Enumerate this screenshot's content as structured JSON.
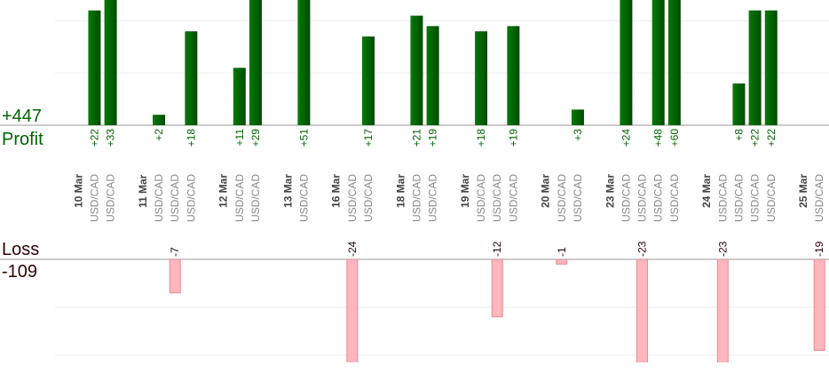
{
  "chart_data": {
    "type": "bar",
    "profit": {
      "label": "Profit",
      "total": 447,
      "total_label": "+447",
      "color": "#006400",
      "ylim": [
        0,
        24
      ],
      "yticks": [
        10,
        20
      ],
      "grid": true
    },
    "loss": {
      "label": "Loss",
      "total": -109,
      "color": "#ffb6bc",
      "ylim": [
        0,
        -21.5
      ],
      "yticks": [
        -10,
        -20
      ],
      "grid": true
    },
    "days": [
      {
        "label": "10 Mar",
        "symbols": [
          "USD/CAD",
          "USD/CAD"
        ],
        "values": [
          22,
          33
        ],
        "value_labels": [
          "+22",
          "+33"
        ]
      },
      {
        "label": "11 Mar",
        "symbols": [
          "USD/CAD",
          "USD/CAD",
          "USD/CAD"
        ],
        "values": [
          2,
          -7,
          18
        ],
        "value_labels": [
          "+2",
          "-7",
          "+18"
        ]
      },
      {
        "label": "12 Mar",
        "symbols": [
          "USD/CAD",
          "USD/CAD"
        ],
        "values": [
          11,
          29
        ],
        "value_labels": [
          "+11",
          "+29"
        ]
      },
      {
        "label": "13 Mar",
        "symbols": [
          "USD/CAD"
        ],
        "values": [
          51
        ],
        "value_labels": [
          "+51"
        ]
      },
      {
        "label": "16 Mar",
        "symbols": [
          "USD/CAD",
          "USD/CAD"
        ],
        "values": [
          -24,
          17
        ],
        "value_labels": [
          "-24",
          "+17"
        ]
      },
      {
        "label": "18 Mar",
        "symbols": [
          "USD/CAD",
          "USD/CAD"
        ],
        "values": [
          21,
          19
        ],
        "value_labels": [
          "+21",
          "+19"
        ]
      },
      {
        "label": "19 Mar",
        "symbols": [
          "USD/CAD",
          "USD/CAD",
          "USD/CAD"
        ],
        "values": [
          18,
          -12,
          19
        ],
        "value_labels": [
          "+18",
          "-12",
          "+19"
        ]
      },
      {
        "label": "20 Mar",
        "symbols": [
          "USD/CAD",
          "USD/CAD"
        ],
        "values": [
          -1,
          3
        ],
        "value_labels": [
          "-1",
          "+3"
        ]
      },
      {
        "label": "23 Mar",
        "symbols": [
          "USD/CAD",
          "USD/CAD",
          "USD/CAD",
          "USD/CAD"
        ],
        "values": [
          24,
          -23,
          48,
          60
        ],
        "value_labels": [
          "+24",
          "-23",
          "+48",
          "+60"
        ]
      },
      {
        "label": "24 Mar",
        "symbols": [
          "USD/CAD",
          "USD/CAD",
          "USD/CAD",
          "USD/CAD"
        ],
        "values": [
          -23,
          8,
          22,
          22
        ],
        "value_labels": [
          "-23",
          "+8",
          "+22",
          "+22"
        ]
      },
      {
        "label": "25 Mar",
        "symbols": [
          "USD/CAD"
        ],
        "values": [
          -19
        ],
        "value_labels": [
          "-19"
        ]
      }
    ]
  }
}
